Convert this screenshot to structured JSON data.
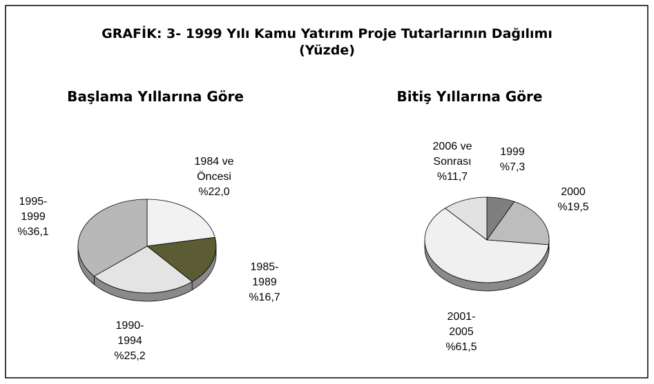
{
  "title": "GRAFİK: 3- 1999 Yılı Kamu Yatırım Proje Tutarlarının Dağılımı",
  "subtitle": "(Yüzde)",
  "chart_data": [
    {
      "type": "pie",
      "title": "Başlama Yıllarına Göre",
      "categories": [
        "1984 ve Öncesi",
        "1985-1989",
        "1990-1994",
        "1995-1999"
      ],
      "values": [
        22.0,
        16.7,
        25.2,
        36.1
      ],
      "value_labels": [
        "%22,0",
        "%16,7",
        "%25,2",
        "%36,1"
      ],
      "colors": [
        "#f2f2f2",
        "#5b5b34",
        "#e4e4e4",
        "#b8b8b8"
      ]
    },
    {
      "type": "pie",
      "title": "Bitiş Yıllarına Göre",
      "categories": [
        "1999",
        "2000",
        "2001-2005",
        "2006 ve Sonrası"
      ],
      "values": [
        7.3,
        19.5,
        61.5,
        11.7
      ],
      "value_labels": [
        "%7,3",
        "%19,5",
        "%61,5",
        "%11,7"
      ],
      "colors": [
        "#7f7f7f",
        "#bdbdbd",
        "#f0f0f0",
        "#e2e2e2"
      ]
    }
  ]
}
